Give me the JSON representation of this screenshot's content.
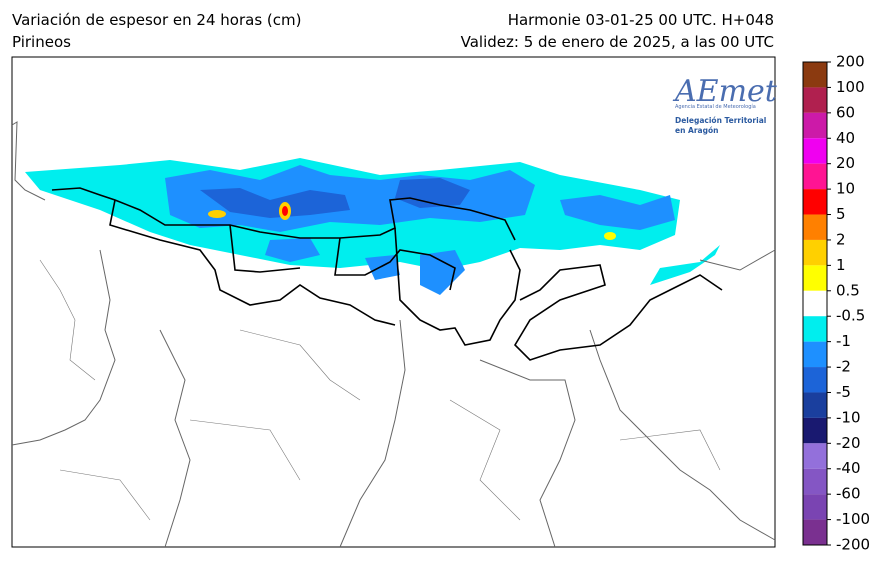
{
  "header": {
    "title_left": "Variación de espesor en 24 horas (cm)",
    "subtitle_left": "Pirineos",
    "title_right": "Harmonie 03-01-25 00 UTC. H+048",
    "subtitle_right": "Validez: 5 de enero de 2025, a las 00 UTC"
  },
  "logo": {
    "name": "AEmet",
    "agency": "Agencia Estatal de Meteorología",
    "line1": "Delegación Territorial",
    "line2": "en Aragón"
  },
  "colorbar": {
    "ticks": [
      200,
      100,
      60,
      40,
      20,
      10,
      5,
      2,
      1,
      0.5,
      -0.5,
      -1,
      -2,
      -5,
      -10,
      -20,
      -40,
      -60,
      -100,
      -200
    ],
    "colors": [
      "#8b3a10",
      "#b0204f",
      "#cc1aa8",
      "#f000f0",
      "#ff1493",
      "#ff0000",
      "#ff8000",
      "#ffd000",
      "#ffff00",
      "#ffffff",
      "#00eeee",
      "#1e90ff",
      "#1c64d8",
      "#1a3f9e",
      "#191970",
      "#9370db",
      "#8456c4",
      "#7a44b2",
      "#7a3090"
    ]
  }
}
